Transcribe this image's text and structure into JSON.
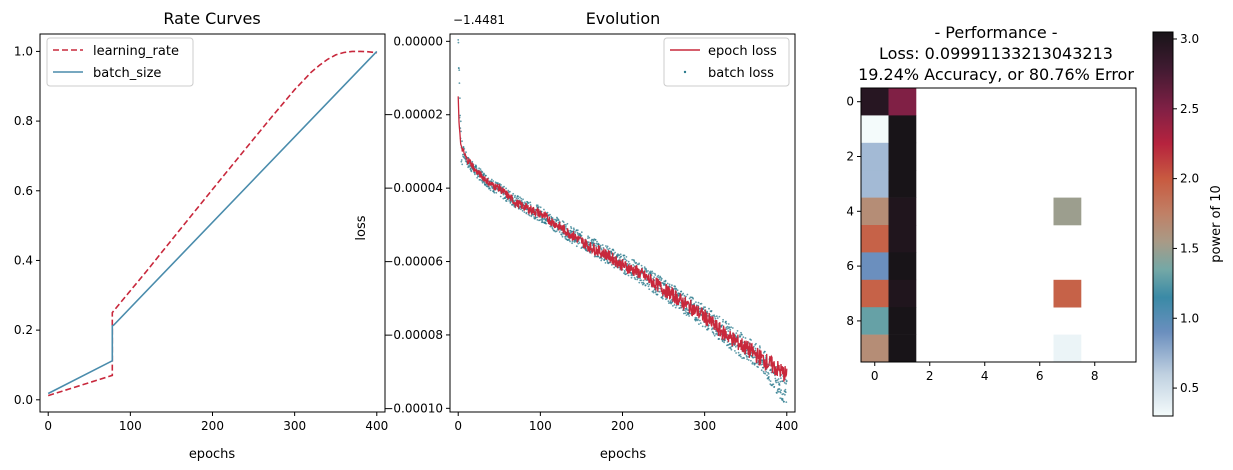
{
  "chart_data": [
    {
      "type": "line",
      "title": "Rate Curves",
      "xlabel": "epochs",
      "ylabel": "",
      "xlim": [
        -10,
        410
      ],
      "ylim": [
        -0.035,
        1.05
      ],
      "xticks": [
        "0",
        "100",
        "200",
        "300",
        "400"
      ],
      "yticks": [
        "0.0",
        "0.2",
        "0.4",
        "0.6",
        "0.8",
        "1.0"
      ],
      "legend_position": "top-left",
      "series": [
        {
          "name": "learning_rate",
          "style": "dashed",
          "color": "#c8283c",
          "x": [
            0,
            78,
            78,
            80,
            120,
            160,
            200,
            240,
            270,
            290,
            300,
            310,
            320,
            330,
            340,
            350,
            360,
            370,
            380,
            390,
            400
          ],
          "y": [
            0.012,
            0.07,
            0.25,
            0.256,
            0.37,
            0.487,
            0.604,
            0.72,
            0.806,
            0.862,
            0.89,
            0.915,
            0.94,
            0.96,
            0.977,
            0.99,
            0.997,
            1.0,
            1.0,
            0.999,
            0.996
          ]
        },
        {
          "name": "batch_size",
          "style": "solid",
          "color": "#4a8cac",
          "x": [
            0,
            78,
            78,
            80,
            400
          ],
          "y": [
            0.018,
            0.112,
            0.212,
            0.215,
            1.0
          ]
        }
      ]
    },
    {
      "type": "line",
      "title": "Evolution",
      "offset_label": "−1.4481",
      "xlabel": "epochs",
      "ylabel": "loss",
      "xlim": [
        -10,
        410
      ],
      "ylim": [
        -0.000101,
        2e-06
      ],
      "xticks": [
        "0",
        "100",
        "200",
        "300",
        "400"
      ],
      "yticks": [
        "0.00000",
        "−0.00002",
        "−0.00004",
        "−0.00006",
        "−0.00008",
        "−0.00010"
      ],
      "legend_position": "top-right",
      "series": [
        {
          "name": "epoch loss",
          "style": "solid",
          "color": "#c8283c",
          "x": [
            0,
            1,
            3,
            6,
            10,
            15,
            20,
            30,
            40,
            50,
            60,
            70,
            80,
            100,
            120,
            140,
            160,
            180,
            200,
            220,
            240,
            260,
            280,
            300,
            320,
            340,
            360,
            380,
            400
          ],
          "y": [
            -1.5e-05,
            -2.2e-05,
            -2.8e-05,
            -3e-05,
            -3.2e-05,
            -3.3e-05,
            -3.5e-05,
            -3.7e-05,
            -3.9e-05,
            -4e-05,
            -4.2e-05,
            -4.4e-05,
            -4.5e-05,
            -4.7e-05,
            -5e-05,
            -5.3e-05,
            -5.6e-05,
            -5.8e-05,
            -6.1e-05,
            -6.3e-05,
            -6.6e-05,
            -6.9e-05,
            -7.2e-05,
            -7.5e-05,
            -7.9e-05,
            -8.2e-05,
            -8.5e-05,
            -8.8e-05,
            -9.1e-05
          ]
        },
        {
          "name": "batch loss",
          "style": "points",
          "color": "#2a7a8c",
          "x": [
            0,
            1,
            2,
            4,
            8,
            12,
            20,
            40,
            60,
            80,
            100,
            140,
            180,
            220,
            260,
            300,
            340,
            370,
            400
          ],
          "y": [
            5e-07,
            -5e-06,
            -2e-05,
            -2.9e-05,
            -3.1e-05,
            -3.3e-05,
            -3.5e-05,
            -3.9e-05,
            -4.2e-05,
            -4.5e-05,
            -4.7e-05,
            -5.3e-05,
            -5.8e-05,
            -6.3e-05,
            -6.9e-05,
            -7.5e-05,
            -8.2e-05,
            -8.7e-05,
            -9.6e-05
          ]
        }
      ]
    },
    {
      "type": "heatmap",
      "title_lines": [
        "- Performance -",
        "Loss: 0.09991133213043213",
        "19.24% Accuracy, or 80.76% Error"
      ],
      "xticks": [
        "0",
        "2",
        "4",
        "6",
        "8"
      ],
      "yticks": [
        "0",
        "2",
        "4",
        "6",
        "8"
      ],
      "rows": 10,
      "cols": 10,
      "cells": [
        {
          "row": 0,
          "col": 0,
          "value": 2.95
        },
        {
          "row": 0,
          "col": 1,
          "value": 2.5
        },
        {
          "row": 1,
          "col": 0,
          "value": 0.3
        },
        {
          "row": 1,
          "col": 1,
          "value": 3.05
        },
        {
          "row": 2,
          "col": 0,
          "value": 0.7
        },
        {
          "row": 2,
          "col": 1,
          "value": 3.05
        },
        {
          "row": 3,
          "col": 0,
          "value": 0.7
        },
        {
          "row": 3,
          "col": 1,
          "value": 3.05
        },
        {
          "row": 4,
          "col": 0,
          "value": 1.65
        },
        {
          "row": 4,
          "col": 1,
          "value": 3.0
        },
        {
          "row": 4,
          "col": 7,
          "value": 1.5
        },
        {
          "row": 5,
          "col": 0,
          "value": 1.95
        },
        {
          "row": 5,
          "col": 1,
          "value": 3.0
        },
        {
          "row": 6,
          "col": 0,
          "value": 0.9
        },
        {
          "row": 6,
          "col": 1,
          "value": 3.05
        },
        {
          "row": 7,
          "col": 0,
          "value": 1.95
        },
        {
          "row": 7,
          "col": 1,
          "value": 3.0
        },
        {
          "row": 7,
          "col": 7,
          "value": 1.95
        },
        {
          "row": 8,
          "col": 0,
          "value": 1.3
        },
        {
          "row": 8,
          "col": 1,
          "value": 3.05
        },
        {
          "row": 9,
          "col": 0,
          "value": 1.65
        },
        {
          "row": 9,
          "col": 1,
          "value": 3.05
        },
        {
          "row": 9,
          "col": 7,
          "value": 0.35
        }
      ],
      "colorbar": {
        "label": "power of 10",
        "range": [
          0.3,
          3.05
        ],
        "ticks": [
          "0.5",
          "1.0",
          "1.5",
          "2.0",
          "2.5",
          "3.0"
        ],
        "stops": [
          {
            "v": 0.3,
            "c": "#f4fbfb"
          },
          {
            "v": 0.6,
            "c": "#bfd0e0"
          },
          {
            "v": 0.9,
            "c": "#6b8fbe"
          },
          {
            "v": 1.15,
            "c": "#3a8aa6"
          },
          {
            "v": 1.35,
            "c": "#74a8a6"
          },
          {
            "v": 1.55,
            "c": "#a99a86"
          },
          {
            "v": 1.75,
            "c": "#c08066"
          },
          {
            "v": 2.0,
            "c": "#c85a40"
          },
          {
            "v": 2.25,
            "c": "#b6233e"
          },
          {
            "v": 2.5,
            "c": "#802045"
          },
          {
            "v": 2.8,
            "c": "#3e1a30"
          },
          {
            "v": 3.05,
            "c": "#181418"
          }
        ]
      }
    }
  ]
}
